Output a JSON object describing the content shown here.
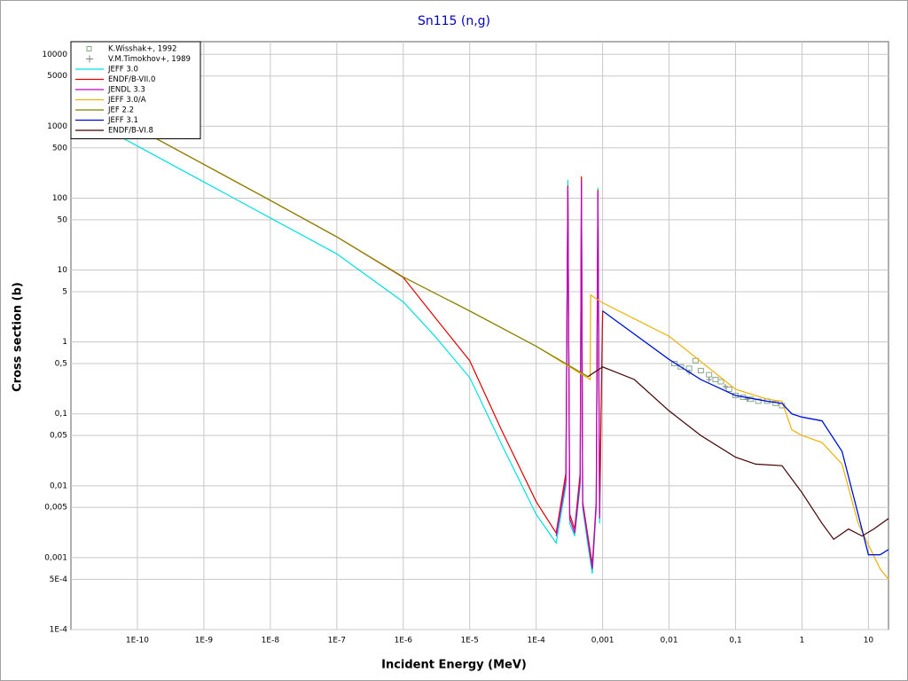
{
  "chart_data": {
    "type": "line",
    "title": "Sn115 (n,g)",
    "x_label": "Incident Energy (MeV)",
    "y_label": "Cross section (b)",
    "xscale": "log",
    "yscale": "log",
    "grid": true,
    "legend_position": "top-left",
    "xlim": [
      1e-11,
      20
    ],
    "ylim": [
      0.0001,
      15000
    ],
    "xticks": [
      {
        "value": 1e-10,
        "label": "1E-10"
      },
      {
        "value": 1e-09,
        "label": "1E-9"
      },
      {
        "value": 1e-08,
        "label": "1E-8"
      },
      {
        "value": 1e-07,
        "label": "1E-7"
      },
      {
        "value": 1e-06,
        "label": "1E-6"
      },
      {
        "value": 1e-05,
        "label": "1E-5"
      },
      {
        "value": 0.0001,
        "label": "1E-4"
      },
      {
        "value": 0.001,
        "label": "0,001"
      },
      {
        "value": 0.01,
        "label": "0,01"
      },
      {
        "value": 0.1,
        "label": "0,1"
      },
      1,
      10
    ],
    "yticks": [
      10000,
      5000,
      1000,
      500,
      100,
      50,
      10,
      5,
      1,
      {
        "value": 0.5,
        "label": "0,5"
      },
      {
        "value": 0.1,
        "label": "0,1"
      },
      {
        "value": 0.05,
        "label": "0,05"
      },
      {
        "value": 0.01,
        "label": "0,01"
      },
      {
        "value": 0.005,
        "label": "0,005"
      },
      {
        "value": 0.001,
        "label": "0,001"
      },
      {
        "value": 0.0005,
        "label": "5E-4"
      },
      {
        "value": 0.0001,
        "label": "1E-4"
      }
    ],
    "series": [
      {
        "name": "K.Wisshak+, 1992",
        "marker": "square",
        "color": "#8aa88a",
        "x": [
          0.012,
          0.015,
          0.02,
          0.025,
          0.03,
          0.04,
          0.05,
          0.06,
          0.08,
          0.1,
          0.13,
          0.17,
          0.22,
          0.3,
          0.4,
          0.5
        ],
        "values": [
          0.5,
          0.45,
          0.43,
          0.55,
          0.4,
          0.35,
          0.3,
          0.28,
          0.22,
          0.18,
          0.17,
          0.16,
          0.15,
          0.15,
          0.14,
          0.13
        ]
      },
      {
        "name": "V.M.Timokhov+, 1989",
        "marker": "plus",
        "color": "#808080",
        "x": [
          0.02,
          0.04,
          0.07,
          0.15
        ],
        "values": [
          0.38,
          0.3,
          0.24,
          0.16
        ]
      },
      {
        "name": "JEFF 3.0",
        "color": "#00e0e0",
        "x": [
          1e-11,
          1e-10,
          1e-09,
          1e-08,
          1e-07,
          1e-06,
          3e-06,
          1e-05,
          3e-05,
          0.0001,
          0.0002,
          0.00028,
          0.0003,
          0.00032,
          0.00038,
          0.00046,
          0.00048,
          0.0005,
          0.0006,
          0.0007,
          0.0008,
          0.00085,
          0.0009,
          0.001,
          0.01,
          0.03,
          0.1,
          0.3,
          0.5,
          0.7,
          1,
          2,
          4,
          7,
          10,
          15,
          20
        ],
        "values": [
          1680,
          530,
          168,
          53,
          16.8,
          3.6,
          1.2,
          0.32,
          0.038,
          0.004,
          0.0016,
          0.01,
          180,
          0.003,
          0.002,
          0.01,
          190,
          0.005,
          0.0015,
          0.0006,
          0.005,
          140,
          0.003,
          2.7,
          0.57,
          0.3,
          0.18,
          0.15,
          0.14,
          0.1,
          0.09,
          0.08,
          0.03,
          0.004,
          0.0011,
          0.0011,
          0.0013
        ]
      },
      {
        "name": "ENDF/B-VII.0",
        "color": "#e00000",
        "x": [
          1e-11,
          1e-10,
          1e-09,
          1e-08,
          1e-07,
          1e-06,
          3e-06,
          1e-05,
          3e-05,
          0.0001,
          0.0002,
          0.00028,
          0.0003,
          0.00032,
          0.00038,
          0.00046,
          0.00048,
          0.0005,
          0.0006,
          0.0007,
          0.0008,
          0.00085,
          0.0009,
          0.001
        ],
        "values": [
          2900,
          930,
          295,
          93,
          29,
          7.9,
          2.2,
          0.55,
          0.06,
          0.006,
          0.0022,
          0.015,
          150,
          0.004,
          0.0025,
          0.015,
          200,
          0.006,
          0.002,
          0.0008,
          0.006,
          130,
          0.004,
          2.7
        ]
      },
      {
        "name": "JENDL 3.3",
        "color": "#c000c0",
        "x": [
          0.0002,
          0.00028,
          0.0003,
          0.00032,
          0.00038,
          0.00046,
          0.00048,
          0.0005,
          0.0006,
          0.0007,
          0.0008,
          0.00085,
          0.0009
        ],
        "values": [
          0.002,
          0.012,
          140,
          0.0035,
          0.0022,
          0.012,
          170,
          0.0055,
          0.0018,
          0.0007,
          0.0055,
          120,
          0.0035
        ]
      },
      {
        "name": "JEFF 3.0/A",
        "color": "#f0b000",
        "x": [
          1e-11,
          1e-10,
          1e-09,
          1e-08,
          1e-07,
          1e-06,
          1e-05,
          0.0001,
          0.00065,
          0.00066,
          0.001,
          0.01,
          0.1,
          0.3,
          0.5,
          0.7,
          1,
          2,
          4,
          7,
          10,
          15,
          20
        ],
        "values": [
          2900,
          930,
          295,
          93,
          29,
          8,
          2.7,
          0.87,
          0.3,
          4.5,
          3.5,
          1.2,
          0.22,
          0.16,
          0.15,
          0.06,
          0.05,
          0.04,
          0.02,
          0.003,
          0.0015,
          0.0007,
          0.0005
        ]
      },
      {
        "name": "JEF 2.2",
        "color": "#808000",
        "x": [
          1e-11,
          1e-10,
          1e-09,
          1e-08,
          1e-07,
          1e-06,
          1e-05,
          0.0001,
          0.0006
        ],
        "values": [
          2900,
          930,
          295,
          93,
          29,
          8,
          2.7,
          0.87,
          0.33
        ]
      },
      {
        "name": "JEFF 3.1",
        "color": "#0000e0",
        "x": [
          0.001,
          0.01,
          0.03,
          0.1,
          0.3,
          0.5,
          0.7,
          1,
          2,
          4,
          7,
          10,
          15,
          20
        ],
        "values": [
          2.7,
          0.57,
          0.3,
          0.18,
          0.15,
          0.14,
          0.1,
          0.09,
          0.08,
          0.03,
          0.004,
          0.0011,
          0.0011,
          0.0013
        ]
      },
      {
        "name": "ENDF/B-VI.8",
        "color": "#400000",
        "x": [
          0.0006,
          0.001,
          0.003,
          0.01,
          0.03,
          0.1,
          0.2,
          0.5,
          1,
          2,
          3,
          5,
          8,
          12,
          20
        ],
        "values": [
          0.33,
          0.45,
          0.3,
          0.11,
          0.05,
          0.025,
          0.02,
          0.019,
          0.008,
          0.003,
          0.0018,
          0.0025,
          0.002,
          0.0025,
          0.0035
        ]
      }
    ]
  }
}
